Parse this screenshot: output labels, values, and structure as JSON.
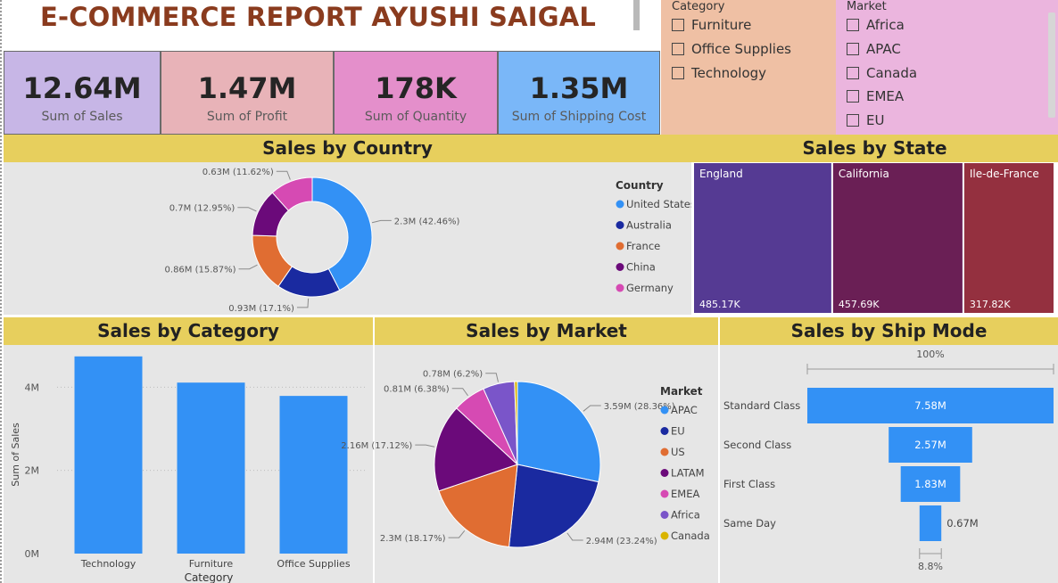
{
  "title": "E-COMMERCE REPORT AYUSHI SAIGAL",
  "kpis": [
    {
      "value": "12.64M",
      "label": "Sum of Sales",
      "color": "#c7b6e6"
    },
    {
      "value": "1.47M",
      "label": "Sum of Profit",
      "color": "#e8b3b8"
    },
    {
      "value": "178K",
      "label": "Sum of Quantity",
      "color": "#e48fcb"
    },
    {
      "value": "1.35M",
      "label": "Sum of Shipping Cost",
      "color": "#7ab7f8"
    }
  ],
  "slicers": {
    "category": {
      "title": "Category",
      "items": [
        "Furniture",
        "Office Supplies",
        "Technology"
      ],
      "bg": "#efc0a4"
    },
    "market": {
      "title": "Market",
      "items": [
        "Africa",
        "APAC",
        "Canada",
        "EMEA",
        "EU"
      ],
      "bg": "#ebb5de"
    }
  },
  "panels": {
    "country": {
      "title": "Sales by Country"
    },
    "state": {
      "title": "Sales by State"
    },
    "category": {
      "title": "Sales by Category"
    },
    "market": {
      "title": "Sales by Market"
    },
    "shipmode": {
      "title": "Sales by Ship Mode"
    }
  },
  "chart_data": [
    {
      "id": "country",
      "type": "pie",
      "variant": "donut",
      "legend_title": "Country",
      "categories": [
        "United States",
        "Australia",
        "France",
        "China",
        "Germany"
      ],
      "values": [
        2.3,
        0.93,
        0.86,
        0.7,
        0.63
      ],
      "labels": [
        "2.3M (42.46%)",
        "0.93M (17.1%)",
        "0.86M (15.87%)",
        "0.7M (12.95%)",
        "0.63M (11.62%)"
      ],
      "colors": [
        "#3391f5",
        "#1a2aa0",
        "#e06d32",
        "#6b0a7a",
        "#d64ab3"
      ]
    },
    {
      "id": "state",
      "type": "treemap",
      "categories": [
        "England",
        "California",
        "Ile-de-France"
      ],
      "values": [
        485.17,
        457.69,
        317.82
      ],
      "labels": [
        "485.17K",
        "457.69K",
        "317.82K"
      ],
      "colors": [
        "#553a93",
        "#6a1f55",
        "#94303f"
      ]
    },
    {
      "id": "category",
      "type": "bar",
      "categories": [
        "Technology",
        "Furniture",
        "Office Supplies"
      ],
      "values": [
        4.74,
        4.11,
        3.79
      ],
      "xlabel": "Category",
      "ylabel": "Sum of Sales",
      "yticks": [
        {
          "v": 0,
          "t": "0M"
        },
        {
          "v": 2,
          "t": "2M"
        },
        {
          "v": 4,
          "t": "4M"
        }
      ],
      "ylim": [
        0,
        4.8
      ],
      "color": "#3391f5"
    },
    {
      "id": "market",
      "type": "pie",
      "legend_title": "Market",
      "categories": [
        "APAC",
        "EU",
        "US",
        "LATAM",
        "EMEA",
        "Africa",
        "Canada"
      ],
      "values": [
        3.59,
        2.94,
        2.3,
        2.16,
        0.81,
        0.78,
        0.07
      ],
      "labels": [
        "3.59M (28.36%)",
        "2.94M (23.24%)",
        "2.3M (18.17%)",
        "2.16M (17.12%)",
        "0.81M (6.38%)",
        "0.78M (6.2%)",
        ""
      ],
      "colors": [
        "#3391f5",
        "#1a2aa0",
        "#e06d32",
        "#6b0a7a",
        "#d64ab3",
        "#7a55c9",
        "#d9b400"
      ]
    },
    {
      "id": "shipmode",
      "type": "funnel",
      "categories": [
        "Standard Class",
        "Second Class",
        "First Class",
        "Same Day"
      ],
      "values": [
        7.58,
        2.57,
        1.83,
        0.67
      ],
      "labels": [
        "7.58M",
        "2.57M",
        "1.83M",
        "0.67M"
      ],
      "top_label": "100%",
      "bottom_label": "8.8%",
      "color": "#3391f5"
    }
  ]
}
